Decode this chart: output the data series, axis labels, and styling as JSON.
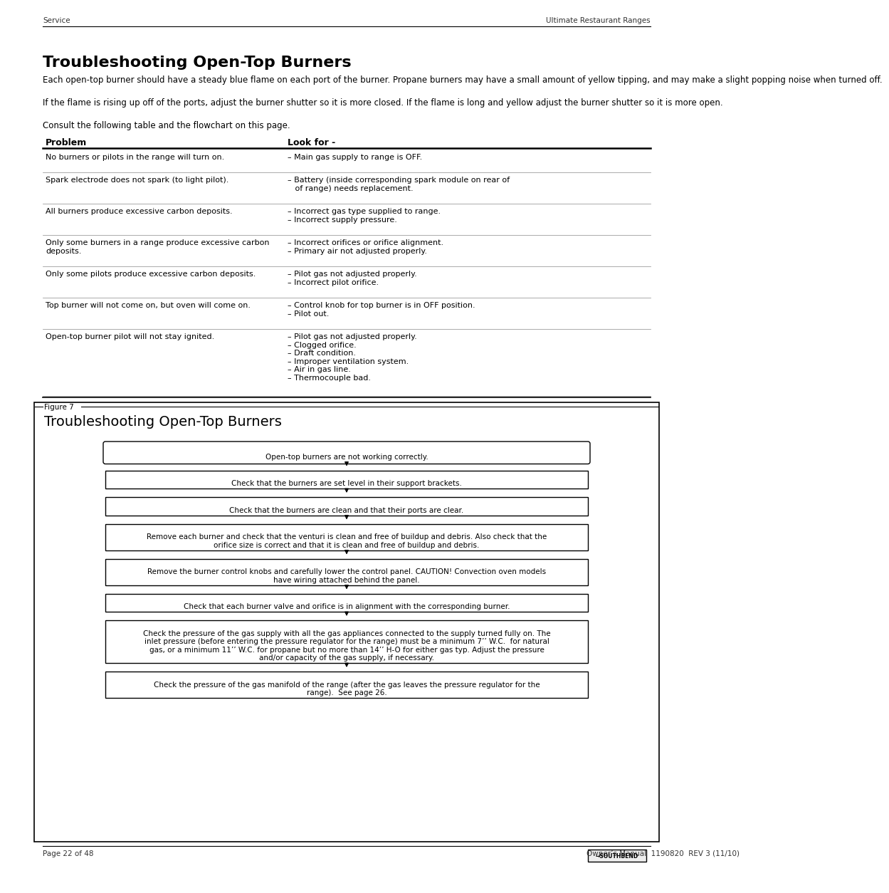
{
  "header_left": "Service",
  "header_right": "Ultimate Restaurant Ranges",
  "page_title": "Troubleshooting Open-Top Burners",
  "intro_para1": "Each open-top burner should have a steady blue flame on each port of the burner. Propane burners may have a small amount of yellow tipping, and may make a slight popping noise when turned off.",
  "intro_para2": "If the flame is rising up off of the ports, adjust the burner shutter so it is more closed. If the flame is long and yellow adjust the burner shutter so it is more open.",
  "intro_para3": "Consult the following table and the flowchart on this page.",
  "table_col1_header": "Problem",
  "table_col2_header": "Look for -",
  "table_rows": [
    {
      "prob": "No burners or pilots in the range will turn on.",
      "look": "– Main gas supply to range is OFF."
    },
    {
      "prob": "Spark electrode does not spark (to light pilot).",
      "look": "– Battery (inside corresponding spark module on rear of\n   of range) needs replacement."
    },
    {
      "prob": "All burners produce excessive carbon deposits.",
      "look": "– Incorrect gas type supplied to range.\n– Incorrect supply pressure."
    },
    {
      "prob": "Only some burners in a range produce excessive carbon\ndeposits.",
      "look": "– Incorrect orifices or orifice alignment.\n– Primary air not adjusted properly."
    },
    {
      "prob": "Only some pilots produce excessive carbon deposits.",
      "look": "– Pilot gas not adjusted properly.\n– Incorrect pilot orifice."
    },
    {
      "prob": "Top burner will not come on, but oven will come on.",
      "look": "– Control knob for top burner is in OFF position.\n– Pilot out."
    },
    {
      "prob": "Open-top burner pilot will not stay ignited.",
      "look": "– Pilot gas not adjusted properly.\n– Clogged orifice.\n– Draft condition.\n– Improper ventilation system.\n– Air in gas line.\n– Thermocouple bad."
    }
  ],
  "figure_label": "Figure 7",
  "figure_title": "Troubleshooting Open-Top Burners",
  "flowchart_boxes": [
    {
      "text": "Open-top burners are not working correctly.",
      "rounded": true
    },
    {
      "text": "Check that the burners are set level in their support brackets.",
      "rounded": false
    },
    {
      "text": "Check that the burners are clean and that their ports are clear.",
      "rounded": false
    },
    {
      "text": "Remove each burner and check that the venturi is clean and free of buildup and debris. Also check that the\norifice size is correct and that it is clean and free of buildup and debris.",
      "rounded": false
    },
    {
      "text": "Remove the burner control knobs and carefully lower the control panel. CAUTION! Convection oven models\nhave wiring attached behind the panel.",
      "rounded": false
    },
    {
      "text": "Check that each burner valve and orifice is in alignment with the corresponding burner.",
      "rounded": false
    },
    {
      "text": "Check the pressure of the gas supply with all the gas appliances connected to the supply turned fully on. The\ninlet pressure (before entering the pressure regulator for the range) must be a minimum 7’’ W.C.  for natural\ngas, or a minimum 11’’ W.C. for propane but no more than 14’’ H-O for either gas typ. Adjust the pressure\nand/or capacity of the gas supply, if necessary.",
      "rounded": false
    },
    {
      "text": "Check the pressure of the gas manifold of the range (after the gas leaves the pressure regulator for the\nrange).  See page 26.",
      "rounded": false
    }
  ],
  "footer_left": "Page 22 of 48",
  "footer_right": "Owner’s Manual  1190820  REV 3 (11/10)",
  "bg_color": "#ffffff",
  "text_color": "#000000"
}
